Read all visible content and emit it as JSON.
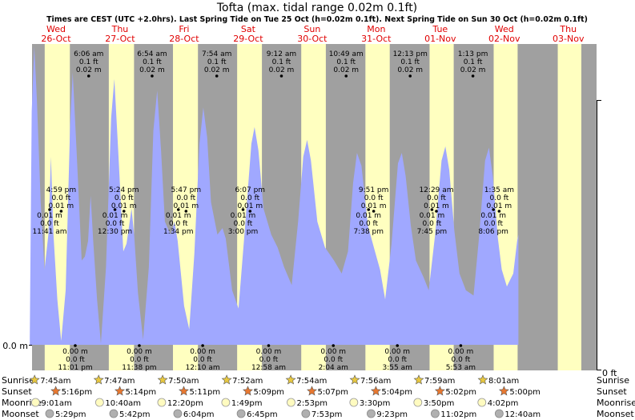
{
  "chart_data": {
    "type": "area",
    "title": "Tofta (max. tidal range 0.02m 0.1ft)",
    "subtitle": "Times are CEST (UTC +2.0hrs). Last Spring Tide on Tue 25 Oct (h=0.02m 0.1ft). Next Spring Tide on Sun 30 Oct (h=0.02m 0.1ft)",
    "y_left_label": "0.0 m",
    "y_right_label": "0 ft",
    "x_range": [
      0.09,
      9.0
    ],
    "ylim": [
      0,
      0.024
    ],
    "days": [
      {
        "dow": "Wed",
        "date": "26-Oct",
        "x": 0.5
      },
      {
        "dow": "Thu",
        "date": "27-Oct",
        "x": 1.5
      },
      {
        "dow": "Fri",
        "date": "28-Oct",
        "x": 2.5
      },
      {
        "dow": "Sat",
        "date": "29-Oct",
        "x": 3.5
      },
      {
        "dow": "Sun",
        "date": "30-Oct",
        "x": 4.5
      },
      {
        "dow": "Mon",
        "date": "31-Oct",
        "x": 5.5
      },
      {
        "dow": "Tue",
        "date": "01-Nov",
        "x": 6.5
      },
      {
        "dow": "Wed",
        "date": "02-Nov",
        "x": 7.5
      },
      {
        "dow": "Thu",
        "date": "03-Nov",
        "x": 8.5
      }
    ],
    "daylight": [
      [
        0.323,
        0.716
      ],
      [
        1.324,
        1.718
      ],
      [
        2.326,
        2.716
      ],
      [
        3.328,
        3.715
      ],
      [
        4.329,
        4.713
      ],
      [
        5.331,
        5.711
      ],
      [
        6.333,
        6.71
      ],
      [
        7.334,
        7.708
      ],
      [
        8.335,
        8.703
      ]
    ],
    "curve_points": [
      [
        0.09,
        0.0005
      ],
      [
        0.12,
        0.018
      ],
      [
        0.16,
        0.023
      ],
      [
        0.2,
        0.019
      ],
      [
        0.26,
        0.011
      ],
      [
        0.32,
        0.0058
      ],
      [
        0.38,
        0.0085
      ],
      [
        0.42,
        0.0145
      ],
      [
        0.46,
        0.0085
      ],
      [
        0.52,
        0.0035
      ],
      [
        0.58,
        0.0003
      ],
      [
        0.65,
        0.0042
      ],
      [
        0.72,
        0.017
      ],
      [
        0.76,
        0.021
      ],
      [
        0.82,
        0.015
      ],
      [
        0.9,
        0.0065
      ],
      [
        0.95,
        0.0068
      ],
      [
        1.0,
        0.008
      ],
      [
        1.04,
        0.0115
      ],
      [
        1.08,
        0.008
      ],
      [
        1.14,
        0.0035
      ],
      [
        1.2,
        0.0001
      ],
      [
        1.28,
        0.006
      ],
      [
        1.36,
        0.0175
      ],
      [
        1.41,
        0.0205
      ],
      [
        1.47,
        0.015
      ],
      [
        1.55,
        0.0072
      ],
      [
        1.6,
        0.0078
      ],
      [
        1.68,
        0.0105
      ],
      [
        1.72,
        0.0085
      ],
      [
        1.78,
        0.004
      ],
      [
        1.86,
        0.0004
      ],
      [
        1.95,
        0.006
      ],
      [
        2.02,
        0.0165
      ],
      [
        2.08,
        0.0196
      ],
      [
        2.14,
        0.015
      ],
      [
        2.2,
        0.0095
      ],
      [
        2.29,
        0.0085
      ],
      [
        2.35,
        0.0095
      ],
      [
        2.4,
        0.008
      ],
      [
        2.5,
        0.003
      ],
      [
        2.58,
        0.0012
      ],
      [
        2.66,
        0.007
      ],
      [
        2.74,
        0.0155
      ],
      [
        2.8,
        0.0183
      ],
      [
        2.86,
        0.016
      ],
      [
        2.92,
        0.011
      ],
      [
        3.02,
        0.0085
      ],
      [
        3.1,
        0.009
      ],
      [
        3.15,
        0.0082
      ],
      [
        3.25,
        0.0042
      ],
      [
        3.35,
        0.0028
      ],
      [
        3.45,
        0.009
      ],
      [
        3.55,
        0.0155
      ],
      [
        3.6,
        0.0168
      ],
      [
        3.66,
        0.015
      ],
      [
        3.74,
        0.0105
      ],
      [
        3.86,
        0.0085
      ],
      [
        3.96,
        0.0075
      ],
      [
        4.06,
        0.006
      ],
      [
        4.18,
        0.0046
      ],
      [
        4.28,
        0.0095
      ],
      [
        4.36,
        0.0145
      ],
      [
        4.42,
        0.0158
      ],
      [
        4.48,
        0.0142
      ],
      [
        4.58,
        0.0095
      ],
      [
        4.7,
        0.0075
      ],
      [
        4.84,
        0.0065
      ],
      [
        4.96,
        0.0055
      ],
      [
        5.06,
        0.0072
      ],
      [
        5.14,
        0.0125
      ],
      [
        5.2,
        0.0148
      ],
      [
        5.27,
        0.0138
      ],
      [
        5.37,
        0.0092
      ],
      [
        5.47,
        0.0074
      ],
      [
        5.56,
        0.0058
      ],
      [
        5.64,
        0.0035
      ],
      [
        5.74,
        0.0078
      ],
      [
        5.84,
        0.014
      ],
      [
        5.9,
        0.0148
      ],
      [
        5.96,
        0.013
      ],
      [
        6.04,
        0.0092
      ],
      [
        6.12,
        0.0065
      ],
      [
        6.24,
        0.0052
      ],
      [
        6.32,
        0.0042
      ],
      [
        6.42,
        0.0085
      ],
      [
        6.52,
        0.0142
      ],
      [
        6.58,
        0.0153
      ],
      [
        6.64,
        0.0135
      ],
      [
        6.72,
        0.0088
      ],
      [
        6.8,
        0.0055
      ],
      [
        6.9,
        0.0042
      ],
      [
        7.02,
        0.0038
      ],
      [
        7.1,
        0.008
      ],
      [
        7.2,
        0.0142
      ],
      [
        7.26,
        0.0152
      ],
      [
        7.32,
        0.013
      ],
      [
        7.4,
        0.0082
      ],
      [
        7.46,
        0.0058
      ],
      [
        7.54,
        0.0045
      ],
      [
        7.64,
        0.0055
      ],
      [
        7.7,
        0.008
      ],
      [
        7.72,
        0.0085
      ],
      [
        7.72,
        0.0
      ]
    ],
    "high_tides": [
      {
        "time": "6:06 am",
        "ft": "0.1 ft",
        "m": "0.02 m",
        "x": 1.01,
        "ly": 0.02
      },
      {
        "time": "6:54 am",
        "ft": "0.1 ft",
        "m": "0.02 m",
        "x": 2.0,
        "ly": 0.02
      },
      {
        "time": "7:54 am",
        "ft": "0.1 ft",
        "m": "0.02 m",
        "x": 3.01,
        "ly": 0.02
      },
      {
        "time": "9:12 am",
        "ft": "0.1 ft",
        "m": "0.02 m",
        "x": 4.02,
        "ly": 0.02
      },
      {
        "time": "10:49 am",
        "ft": "0.1 ft",
        "m": "0.02 m",
        "x": 5.03,
        "ly": 0.02
      },
      {
        "time": "12:13 pm",
        "ft": "0.1 ft",
        "m": "0.02 m",
        "x": 6.03,
        "ly": 0.02
      },
      {
        "time": "1:13 pm",
        "ft": "0.1 ft",
        "m": "0.02 m",
        "x": 7.01,
        "ly": 0.02
      }
    ],
    "secondary_highs": [
      {
        "time": "4:59 pm",
        "ft": "0.0 ft",
        "m": "0.01 m",
        "x": 0.58
      },
      {
        "time": "5:24 pm",
        "ft": "0.0 ft",
        "m": "0.01 m",
        "x": 1.56
      },
      {
        "time": "5:47 pm",
        "ft": "0.0 ft",
        "m": "0.01 m",
        "x": 2.53
      },
      {
        "time": "6:07 pm",
        "ft": "0.0 ft",
        "m": "0.01 m",
        "x": 3.53
      },
      {
        "time": "9:51 pm",
        "ft": "0.0 ft",
        "m": "0.01 m",
        "x": 5.46
      },
      {
        "time": "12:29 am",
        "ft": "0.0 ft",
        "m": "0.01 m",
        "x": 6.44
      },
      {
        "time": "1:35 am",
        "ft": "0.0 ft",
        "m": "0.01 m",
        "x": 7.42
      }
    ],
    "mid_lows": [
      {
        "m": "0.01 m",
        "ft": "0.0 ft",
        "time": "11:41 am",
        "x": 0.4
      },
      {
        "m": "0.01 m",
        "ft": "0.0 ft",
        "time": "12:30 pm",
        "x": 1.42
      },
      {
        "m": "0.01 m",
        "ft": "0.0 ft",
        "time": "1:34 pm",
        "x": 2.41
      },
      {
        "m": "0.01 m",
        "ft": "0.0 ft",
        "time": "3:00 pm",
        "x": 3.42
      },
      {
        "m": "0.01 m",
        "ft": "0.0 ft",
        "time": "7:38 pm",
        "x": 5.38
      },
      {
        "m": "0.01 m",
        "ft": "0.0 ft",
        "time": "7:45 pm",
        "x": 6.37
      },
      {
        "m": "0.01 m",
        "ft": "0.0 ft",
        "time": "8:06 pm",
        "x": 7.33
      }
    ],
    "low_tides": [
      {
        "m": "0.00 m",
        "ft": "0.0 ft",
        "time": "11:01 pm",
        "x": 0.8
      },
      {
        "m": "0.00 m",
        "ft": "0.0 ft",
        "time": "11:38 pm",
        "x": 1.8
      },
      {
        "m": "0.00 m",
        "ft": "0.0 ft",
        "time": "12:10 am",
        "x": 2.79
      },
      {
        "m": "0.00 m",
        "ft": "0.0 ft",
        "time": "12:58 am",
        "x": 3.82
      },
      {
        "m": "0.00 m",
        "ft": "0.0 ft",
        "time": "2:04 am",
        "x": 4.83
      },
      {
        "m": "0.00 m",
        "ft": "0.0 ft",
        "time": "3:55 am",
        "x": 5.83
      },
      {
        "m": "0.00 m",
        "ft": "0.0 ft",
        "time": "5:53 am",
        "x": 6.82
      }
    ],
    "footer_labels": [
      "Sunrise",
      "Sunset",
      "Moonrise",
      "Moonset"
    ],
    "sunrise": [
      {
        "time": "7:45am",
        "x": 0.19
      },
      {
        "time": "7:47am",
        "x": 1.19
      },
      {
        "time": "7:50am",
        "x": 2.19
      },
      {
        "time": "7:52am",
        "x": 3.19
      },
      {
        "time": "7:54am",
        "x": 4.19
      },
      {
        "time": "7:56am",
        "x": 5.19
      },
      {
        "time": "7:59am",
        "x": 6.19
      },
      {
        "time": "8:01am",
        "x": 7.19
      }
    ],
    "sunset": [
      {
        "time": "5:16pm",
        "x": 0.52
      },
      {
        "time": "5:14pm",
        "x": 1.52
      },
      {
        "time": "5:11pm",
        "x": 2.52
      },
      {
        "time": "5:09pm",
        "x": 3.52
      },
      {
        "time": "5:07pm",
        "x": 4.52
      },
      {
        "time": "5:04pm",
        "x": 5.52
      },
      {
        "time": "5:02pm",
        "x": 6.52
      },
      {
        "time": "5:00pm",
        "x": 7.52
      }
    ],
    "moonrise": [
      {
        "time": "9:01am",
        "x": 0.23
      },
      {
        "time": "10:40am",
        "x": 1.23
      },
      {
        "time": "12:20pm",
        "x": 2.2
      },
      {
        "time": "1:49pm",
        "x": 3.2
      },
      {
        "time": "2:53pm",
        "x": 4.22
      },
      {
        "time": "3:30pm",
        "x": 5.2
      },
      {
        "time": "3:50pm",
        "x": 6.2
      },
      {
        "time": "4:02pm",
        "x": 7.2
      }
    ],
    "moonset": [
      {
        "time": "5:29pm",
        "x": 0.45
      },
      {
        "time": "5:42pm",
        "x": 1.45
      },
      {
        "time": "6:04pm",
        "x": 2.45
      },
      {
        "time": "6:45pm",
        "x": 3.44
      },
      {
        "time": "7:53pm",
        "x": 4.45
      },
      {
        "time": "9:23pm",
        "x": 5.47
      },
      {
        "time": "11:02pm",
        "x": 6.47
      },
      {
        "time": "12:40am",
        "x": 7.47
      }
    ],
    "colors": {
      "night": "#a0a0a0",
      "day": "#ffffc0",
      "water": "#a0a8ff",
      "date_text": "#e00000",
      "sun_star": "#e8c840",
      "sunset_star": "#e87830",
      "moon_rise": "#fffbc0",
      "moon_set": "#b0b0b0"
    }
  }
}
